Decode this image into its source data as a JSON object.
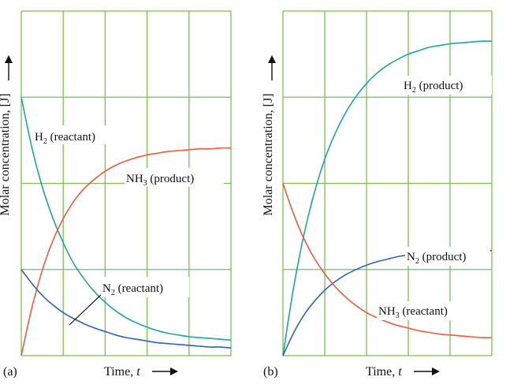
{
  "colors": {
    "grid": "#7cc04a",
    "h2": "#1aa6a0",
    "nh3": "#ef5a3c",
    "n2": "#2f63b4",
    "text": "#111111"
  },
  "chart_data": [
    {
      "type": "line",
      "panel_label": "(a)",
      "xlabel": "Time, t",
      "ylabel": "Molar concentration, [J]",
      "xlim": [
        0,
        5
      ],
      "ylim": [
        0,
        4
      ],
      "grid": true,
      "x": [
        0,
        0.25,
        0.5,
        0.75,
        1,
        1.25,
        1.5,
        1.75,
        2,
        2.25,
        2.5,
        2.75,
        3,
        3.25,
        3.5,
        3.75,
        4,
        4.25,
        4.5,
        4.75,
        5
      ],
      "series": [
        {
          "name": "H₂ (reactant)",
          "values": [
            3.0,
            2.42,
            1.96,
            1.6,
            1.31,
            1.07,
            0.89,
            0.74,
            0.62,
            0.52,
            0.44,
            0.38,
            0.33,
            0.29,
            0.26,
            0.24,
            0.22,
            0.21,
            0.2,
            0.19,
            0.18
          ]
        },
        {
          "name": "NH₃ (product)",
          "values": [
            0.0,
            0.55,
            0.99,
            1.33,
            1.59,
            1.79,
            1.94,
            2.05,
            2.14,
            2.21,
            2.26,
            2.3,
            2.33,
            2.35,
            2.37,
            2.38,
            2.39,
            2.4,
            2.4,
            2.41,
            2.41
          ]
        },
        {
          "name": "N₂ (reactant)",
          "values": [
            1.0,
            0.84,
            0.7,
            0.59,
            0.5,
            0.43,
            0.37,
            0.32,
            0.28,
            0.24,
            0.21,
            0.19,
            0.17,
            0.15,
            0.14,
            0.13,
            0.12,
            0.11,
            0.1,
            0.1,
            0.09
          ]
        }
      ]
    },
    {
      "type": "line",
      "panel_label": "(b)",
      "xlabel": "Time, t",
      "ylabel": "Molar concentration, [J]",
      "xlim": [
        0,
        5
      ],
      "ylim": [
        0,
        4
      ],
      "grid": true,
      "x": [
        0,
        0.25,
        0.5,
        0.75,
        1,
        1.25,
        1.5,
        1.75,
        2,
        2.25,
        2.5,
        2.75,
        3,
        3.25,
        3.5,
        3.75,
        4,
        4.25,
        4.5,
        4.75,
        5
      ],
      "series": [
        {
          "name": "H₂ (product)",
          "values": [
            0.0,
            0.78,
            1.4,
            1.89,
            2.28,
            2.58,
            2.82,
            3.01,
            3.16,
            3.28,
            3.37,
            3.44,
            3.5,
            3.54,
            3.58,
            3.6,
            3.62,
            3.63,
            3.64,
            3.65,
            3.65
          ]
        },
        {
          "name": "N₂ (product)",
          "values": [
            0.0,
            0.26,
            0.47,
            0.63,
            0.76,
            0.86,
            0.94,
            1.0,
            1.05,
            1.09,
            1.12,
            1.15,
            1.17,
            1.18,
            1.19,
            1.2,
            1.21,
            1.21,
            1.22,
            1.22,
            1.22
          ]
        },
        {
          "name": "NH₃ (reactant)",
          "values": [
            2.0,
            1.65,
            1.36,
            1.13,
            0.95,
            0.8,
            0.68,
            0.58,
            0.5,
            0.44,
            0.39,
            0.35,
            0.32,
            0.29,
            0.27,
            0.25,
            0.24,
            0.23,
            0.22,
            0.21,
            0.21
          ]
        }
      ]
    }
  ],
  "text": {
    "a": {
      "panel": "(a)",
      "time_word": "Time, ",
      "time_var": "t",
      "ylabel": "Molar concentration, [J]",
      "h2_base": "H",
      "h2_sub": "2",
      "h2_rest": " (reactant)",
      "nh3_base": "NH",
      "nh3_sub": "3",
      "nh3_rest": " (product)",
      "n2_base": "N",
      "n2_sub": "2",
      "n2_rest": " (reactant)"
    },
    "b": {
      "panel": "(b)",
      "time_word": "Time, ",
      "time_var": "t",
      "ylabel": "Molar concentration, [J]",
      "h2_base": "H",
      "h2_sub": "2",
      "h2_rest": " (product)",
      "n2_base": "N",
      "n2_sub": "2",
      "n2_rest": " (product)",
      "nh3_base": "NH",
      "nh3_sub": "3",
      "nh3_rest": " (reactant)"
    }
  }
}
